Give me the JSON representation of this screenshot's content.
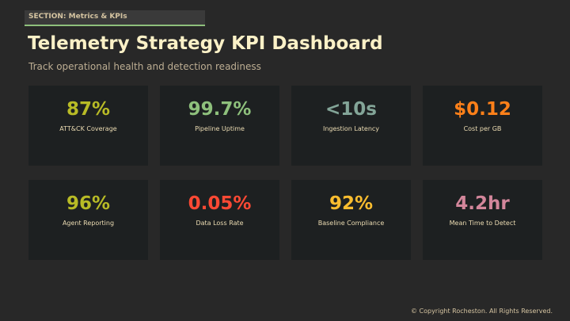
{
  "section_label": "SECTION: Metrics & KPIs",
  "title": "Telemetry Strategy KPI Dashboard",
  "subtitle": "Track operational health and detection readiness",
  "kpis": [
    {
      "value": "87%",
      "label": "ATT&CK Coverage",
      "color": "#b8bb26"
    },
    {
      "value": "99.7%",
      "label": "Pipeline Uptime",
      "color": "#8ec07c"
    },
    {
      "value": "<10s",
      "label": "Ingestion Latency",
      "color": "#83a598"
    },
    {
      "value": "$0.12",
      "label": "Cost per GB",
      "color": "#fe8019"
    },
    {
      "value": "96%",
      "label": "Agent Reporting",
      "color": "#b8bb26"
    },
    {
      "value": "0.05%",
      "label": "Data Loss Rate",
      "color": "#fb4934"
    },
    {
      "value": "92%",
      "label": "Baseline Compliance",
      "color": "#fabd2f"
    },
    {
      "value": "4.2hr",
      "label": "Mean Time to Detect",
      "color": "#d3869b"
    }
  ],
  "footer": "© Copyright Rocheston. All Rights Reserved."
}
